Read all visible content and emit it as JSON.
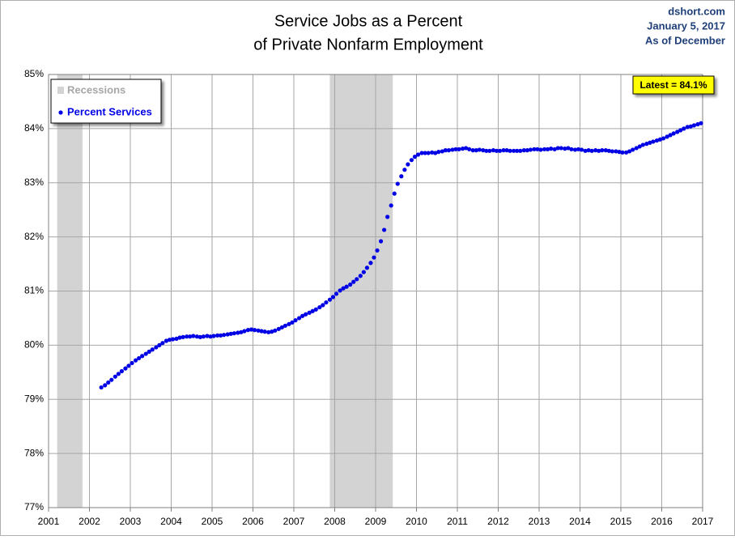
{
  "chart_data": {
    "type": "scatter",
    "title": [
      "Service Jobs as a Percent",
      "of Private Nonfarm Employment"
    ],
    "source_lines": [
      "dshort.com",
      "January 5, 2017",
      "As of December"
    ],
    "annotation": "Latest = 84.1%",
    "recessions": {
      "name": "Recessions",
      "color": "#d3d3d3",
      "spans": [
        [
          2001.21,
          2001.83
        ],
        [
          2007.88,
          2009.42
        ]
      ]
    },
    "xlim": [
      2001,
      2017
    ],
    "xticks": [
      2001,
      2002,
      2003,
      2004,
      2005,
      2006,
      2007,
      2008,
      2009,
      2010,
      2011,
      2012,
      2013,
      2014,
      2015,
      2016,
      2017
    ],
    "ylim": [
      77,
      85
    ],
    "yticks": [
      {
        "value": 77,
        "label": "77%"
      },
      {
        "value": 78,
        "label": "78%"
      },
      {
        "value": 79,
        "label": "79%"
      },
      {
        "value": 80,
        "label": "80%"
      },
      {
        "value": 81,
        "label": "81%"
      },
      {
        "value": 82,
        "label": "82%"
      },
      {
        "value": 83,
        "label": "83%"
      },
      {
        "value": 84,
        "label": "84%"
      },
      {
        "value": 85,
        "label": "85%"
      }
    ],
    "grid": true,
    "legend": "upper left",
    "x": [
      2002.29,
      2002.38,
      2002.46,
      2002.54,
      2002.63,
      2002.71,
      2002.79,
      2002.88,
      2002.96,
      2003.04,
      2003.13,
      2003.21,
      2003.29,
      2003.38,
      2003.46,
      2003.54,
      2003.63,
      2003.71,
      2003.79,
      2003.88,
      2003.96,
      2004.04,
      2004.13,
      2004.21,
      2004.29,
      2004.38,
      2004.46,
      2004.54,
      2004.63,
      2004.71,
      2004.79,
      2004.88,
      2004.96,
      2005.04,
      2005.13,
      2005.21,
      2005.29,
      2005.38,
      2005.46,
      2005.54,
      2005.63,
      2005.71,
      2005.79,
      2005.88,
      2005.96,
      2006.04,
      2006.13,
      2006.21,
      2006.29,
      2006.38,
      2006.46,
      2006.54,
      2006.63,
      2006.71,
      2006.79,
      2006.88,
      2006.96,
      2007.04,
      2007.13,
      2007.21,
      2007.29,
      2007.38,
      2007.46,
      2007.54,
      2007.63,
      2007.71,
      2007.79,
      2007.88,
      2007.96,
      2008.04,
      2008.13,
      2008.21,
      2008.29,
      2008.38,
      2008.46,
      2008.54,
      2008.63,
      2008.71,
      2008.79,
      2008.88,
      2008.96,
      2009.04,
      2009.13,
      2009.21,
      2009.29,
      2009.38,
      2009.46,
      2009.54,
      2009.63,
      2009.71,
      2009.79,
      2009.88,
      2009.96,
      2010.04,
      2010.13,
      2010.21,
      2010.29,
      2010.38,
      2010.46,
      2010.54,
      2010.63,
      2010.71,
      2010.79,
      2010.88,
      2010.96,
      2011.04,
      2011.13,
      2011.21,
      2011.29,
      2011.38,
      2011.46,
      2011.54,
      2011.63,
      2011.71,
      2011.79,
      2011.88,
      2011.96,
      2012.04,
      2012.13,
      2012.21,
      2012.29,
      2012.38,
      2012.46,
      2012.54,
      2012.63,
      2012.71,
      2012.79,
      2012.88,
      2012.96,
      2013.04,
      2013.13,
      2013.21,
      2013.29,
      2013.38,
      2013.46,
      2013.54,
      2013.63,
      2013.71,
      2013.79,
      2013.88,
      2013.96,
      2014.04,
      2014.13,
      2014.21,
      2014.29,
      2014.38,
      2014.46,
      2014.54,
      2014.63,
      2014.71,
      2014.79,
      2014.88,
      2014.96,
      2015.04,
      2015.13,
      2015.21,
      2015.29,
      2015.38,
      2015.46,
      2015.54,
      2015.63,
      2015.71,
      2015.79,
      2015.88,
      2015.96,
      2016.04,
      2016.13,
      2016.21,
      2016.29,
      2016.38,
      2016.46,
      2016.54,
      2016.63,
      2016.71,
      2016.79,
      2016.88,
      2016.96
    ],
    "series": [
      {
        "name": "Percent Services",
        "color": "#0000e6",
        "values": [
          79.22,
          79.26,
          79.31,
          79.36,
          79.42,
          79.47,
          79.52,
          79.57,
          79.62,
          79.67,
          79.72,
          79.76,
          79.8,
          79.84,
          79.88,
          79.92,
          79.96,
          80.0,
          80.04,
          80.08,
          80.1,
          80.11,
          80.12,
          80.14,
          80.15,
          80.16,
          80.16,
          80.17,
          80.16,
          80.15,
          80.16,
          80.17,
          80.16,
          80.17,
          80.18,
          80.18,
          80.19,
          80.2,
          80.21,
          80.22,
          80.23,
          80.24,
          80.26,
          80.28,
          80.29,
          80.28,
          80.27,
          80.26,
          80.25,
          80.24,
          80.25,
          80.27,
          80.3,
          80.33,
          80.36,
          80.39,
          80.42,
          80.46,
          80.5,
          80.54,
          80.57,
          80.6,
          80.63,
          80.66,
          80.7,
          80.74,
          80.79,
          80.84,
          80.89,
          80.95,
          81.01,
          81.05,
          81.08,
          81.12,
          81.17,
          81.22,
          81.28,
          81.35,
          81.43,
          81.52,
          81.62,
          81.75,
          81.92,
          82.13,
          82.37,
          82.58,
          82.8,
          82.98,
          83.12,
          83.24,
          83.34,
          83.42,
          83.48,
          83.52,
          83.55,
          83.55,
          83.55,
          83.56,
          83.55,
          83.57,
          83.58,
          83.6,
          83.6,
          83.61,
          83.62,
          83.62,
          83.63,
          83.64,
          83.62,
          83.6,
          83.6,
          83.61,
          83.6,
          83.59,
          83.59,
          83.6,
          83.59,
          83.59,
          83.6,
          83.6,
          83.59,
          83.59,
          83.59,
          83.59,
          83.6,
          83.6,
          83.61,
          83.62,
          83.62,
          83.61,
          83.62,
          83.62,
          83.63,
          83.62,
          83.64,
          83.64,
          83.63,
          83.64,
          83.62,
          83.61,
          83.62,
          83.61,
          83.59,
          83.6,
          83.59,
          83.6,
          83.59,
          83.6,
          83.6,
          83.59,
          83.58,
          83.58,
          83.57,
          83.56,
          83.56,
          83.58,
          83.61,
          83.64,
          83.67,
          83.7,
          83.72,
          83.74,
          83.76,
          83.78,
          83.8,
          83.82,
          83.85,
          83.88,
          83.91,
          83.94,
          83.97,
          84.0,
          84.03,
          84.04,
          84.06,
          84.08,
          84.1
        ]
      }
    ]
  }
}
